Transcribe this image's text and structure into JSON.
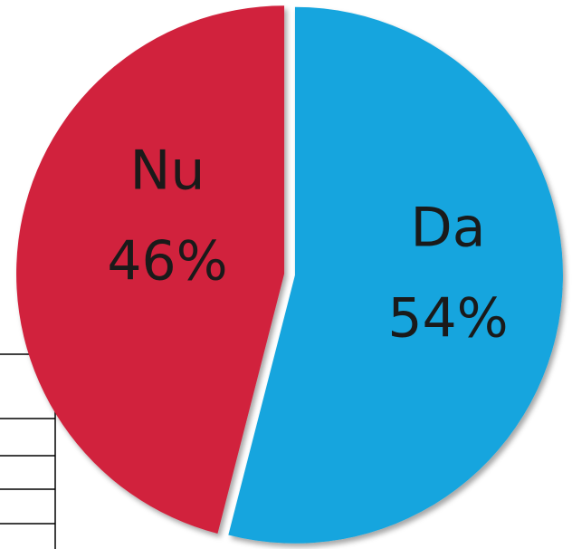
{
  "chart_data": {
    "type": "pie",
    "categories": [
      "Da",
      "Nu"
    ],
    "values": [
      54,
      46
    ],
    "value_labels": [
      "54%",
      "46%"
    ],
    "colors": [
      "#12a5de",
      "#d1223d"
    ]
  }
}
